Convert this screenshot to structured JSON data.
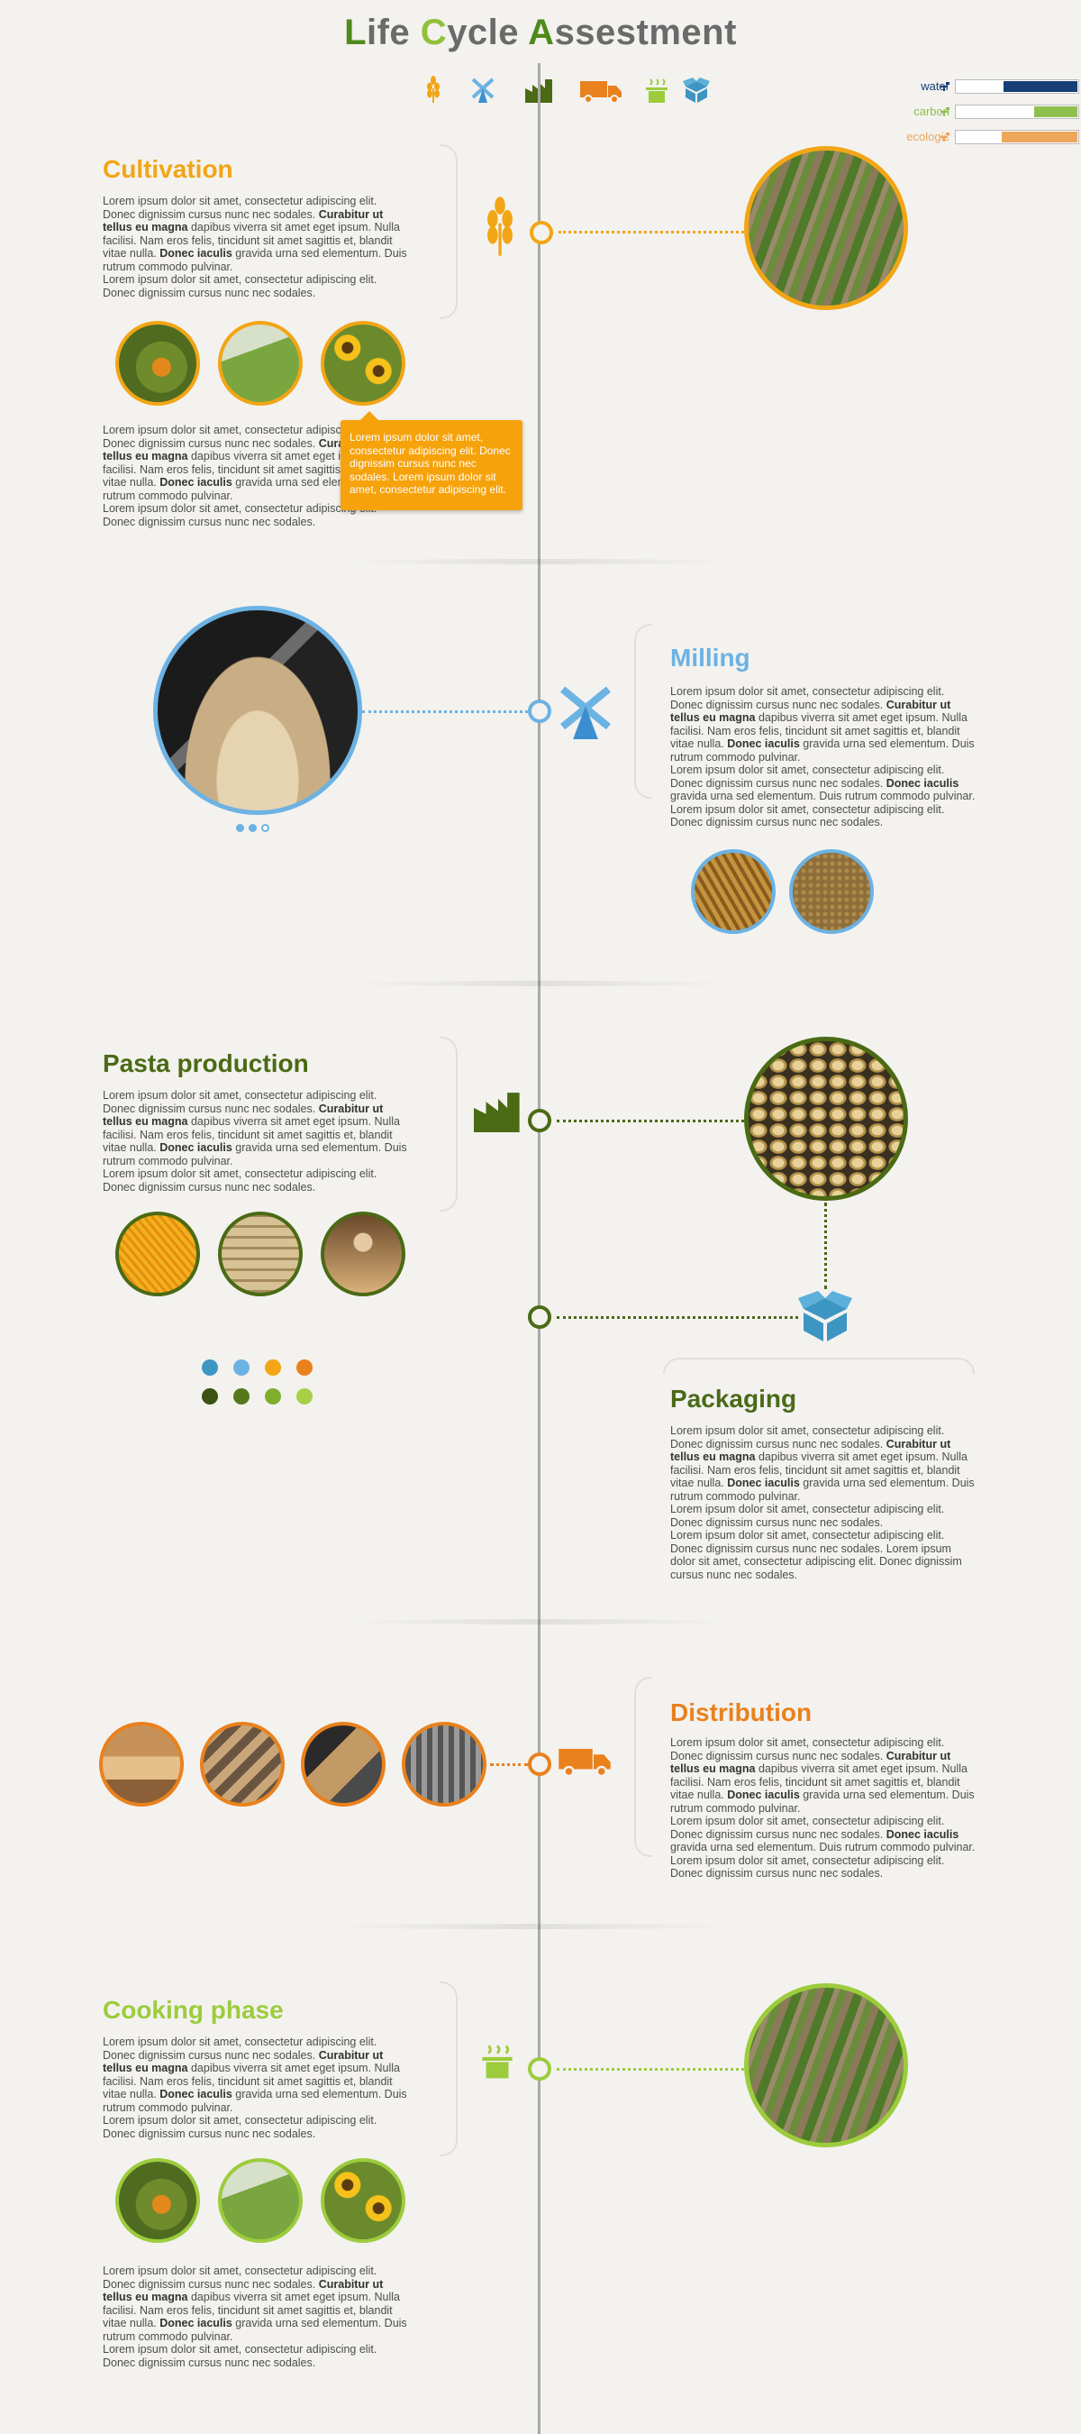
{
  "header": {
    "title_parts": [
      {
        "text": "L",
        "color": "#4f8a1b"
      },
      {
        "text": "ife ",
        "color": "#6a6a6a"
      },
      {
        "text": "C",
        "color": "#8fc13a"
      },
      {
        "text": "ycle ",
        "color": "#6a6a6a"
      },
      {
        "text": "A",
        "color": "#4f8a1b"
      },
      {
        "text": "ssestment",
        "color": "#6a6a6a"
      }
    ],
    "nav_icons": [
      "wheat-icon",
      "windmill-icon",
      "factory-icon",
      "truck-icon",
      "pot-icon",
      "box-icon"
    ]
  },
  "legend": {
    "items": [
      {
        "label": "water",
        "color": "#173f77",
        "fill": 0.6
      },
      {
        "label": "carbon",
        "color": "#8fbf4f",
        "fill": 0.35
      },
      {
        "label": "ecologic",
        "color": "#eda65a",
        "fill": 0.62
      }
    ]
  },
  "colors": {
    "cultivation": "#f2a515",
    "milling": "#6cb2e3",
    "pasta": "#4a6a14",
    "packaging": "#4b6a18",
    "distribution": "#e9811d",
    "cooking": "#9ccc3c",
    "box": "#3d95c2"
  },
  "lorem": {
    "p1_a": "Lorem ipsum dolor sit amet, consectetur adipiscing elit. Donec dignissim cursus nunc nec sodales. ",
    "p1_b": "Curabitur ut tellus eu magna",
    "p1_c": " dapibus viverra sit amet eget ipsum. Nulla facilisi. Nam eros felis, tincidunt sit amet sagittis et, blandit vitae nulla. ",
    "p1_d": "Donec iaculis",
    "p1_e": " gravida urna sed elementum. Duis rutrum commodo pulvinar.",
    "p2": "Lorem ipsum dolor sit amet, consectetur adipiscing elit. Donec dignissim cursus nunc nec sodales.",
    "m2_a": "Lorem ipsum dolor sit amet, consectetur adipiscing elit. Donec dignissim cursus nunc nec sodales. ",
    "m2_b": "Donec iaculis",
    "m2_c": " gravida urna sed elementum. Duis rutrum commodo pulvinar.",
    "pk3": "Lorem ipsum dolor sit amet, consectetur adipiscing elit. Donec dignissim cursus nunc nec sodales. Lorem ipsum dolor sit amet, consectetur adipiscing elit. Donec dignissim cursus nunc nec sodales."
  },
  "sections": {
    "cultivation": {
      "title": "Cultivation"
    },
    "milling": {
      "title": "Milling"
    },
    "pasta": {
      "title": "Pasta production"
    },
    "packaging": {
      "title": "Packaging"
    },
    "distribution": {
      "title": "Distribution"
    },
    "cooking": {
      "title": "Cooking phase"
    }
  },
  "tooltip": {
    "text": "Lorem ipsum dolor sit amet, consectetur adipiscing elit. Donec dignissim cursus nunc nec sodales. Lorem ipsum dolor sit amet, consectetur adipiscing elit."
  }
}
